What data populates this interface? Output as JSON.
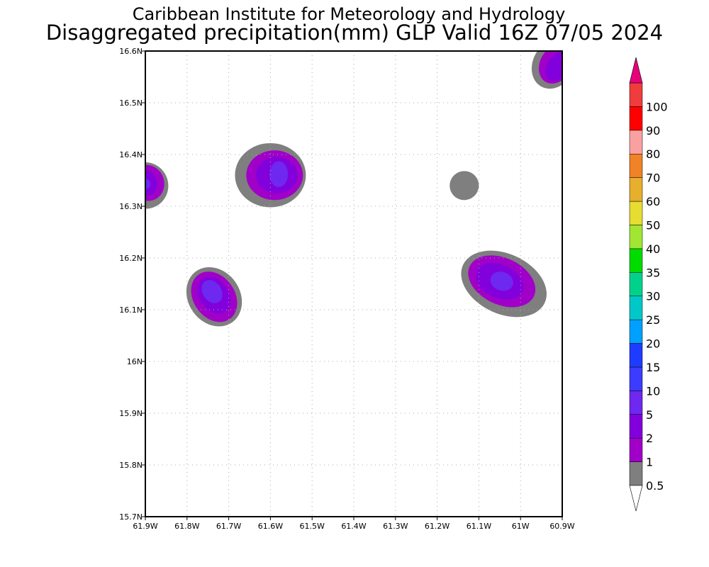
{
  "titles": {
    "line1": "Caribbean Institute for Meteorology and Hydrology",
    "line2": "Disaggregated precipitation(mm) GLP Valid 16Z 07/05 2024"
  },
  "chart_data": {
    "type": "heatmap",
    "x_range": [
      -61.9,
      -60.9
    ],
    "y_range": [
      15.7,
      16.6
    ],
    "x_ticks": [
      {
        "value": -61.9,
        "label": "61.9W"
      },
      {
        "value": -61.8,
        "label": "61.8W"
      },
      {
        "value": -61.7,
        "label": "61.7W"
      },
      {
        "value": -61.6,
        "label": "61.6W"
      },
      {
        "value": -61.5,
        "label": "61.5W"
      },
      {
        "value": -61.4,
        "label": "61.4W"
      },
      {
        "value": -61.3,
        "label": "61.3W"
      },
      {
        "value": -61.2,
        "label": "61.2W"
      },
      {
        "value": -61.1,
        "label": "61.1W"
      },
      {
        "value": -61.0,
        "label": "61W"
      },
      {
        "value": -60.9,
        "label": "60.9W"
      }
    ],
    "y_ticks": [
      {
        "value": 15.7,
        "label": "15.7N"
      },
      {
        "value": 15.8,
        "label": "15.8N"
      },
      {
        "value": 15.9,
        "label": "15.9N"
      },
      {
        "value": 16.0,
        "label": "16N"
      },
      {
        "value": 16.1,
        "label": "16.1N"
      },
      {
        "value": 16.2,
        "label": "16.2N"
      },
      {
        "value": 16.3,
        "label": "16.3N"
      },
      {
        "value": 16.4,
        "label": "16.4N"
      },
      {
        "value": 16.5,
        "label": "16.5N"
      },
      {
        "value": 16.6,
        "label": "16.6N"
      }
    ],
    "grid": true,
    "legend_placement": "right",
    "colorbar": [
      {
        "label": "0.5",
        "color": "#7f7f7f"
      },
      {
        "label": "1",
        "color": "#a000c8"
      },
      {
        "label": "2",
        "color": "#8200dc"
      },
      {
        "label": "5",
        "color": "#6e28f0"
      },
      {
        "label": "10",
        "color": "#3c3cff"
      },
      {
        "label": "15",
        "color": "#1e3cff"
      },
      {
        "label": "20",
        "color": "#00a0ff"
      },
      {
        "label": "25",
        "color": "#00c8c8"
      },
      {
        "label": "30",
        "color": "#00d28c"
      },
      {
        "label": "35",
        "color": "#00dc00"
      },
      {
        "label": "40",
        "color": "#a0e632"
      },
      {
        "label": "50",
        "color": "#e6dc32"
      },
      {
        "label": "60",
        "color": "#e6af2d"
      },
      {
        "label": "70",
        "color": "#f08228"
      },
      {
        "label": "80",
        "color": "#faa0a0"
      },
      {
        "label": "90",
        "color": "#ff0000"
      },
      {
        "label": "100",
        "color": "#f03c3c"
      }
    ],
    "colorbar_top_color": "#e6007a",
    "colorbar_bottom_color": "#ffffff",
    "precip_cells": [
      {
        "lon": -61.9,
        "lat": 16.34,
        "rx": 0.055,
        "ry": 0.045,
        "level": 0.5,
        "tilt": -20
      },
      {
        "lon": -61.895,
        "lat": 16.345,
        "rx": 0.04,
        "ry": 0.035,
        "level": 1,
        "tilt": -20
      },
      {
        "lon": -61.9,
        "lat": 16.345,
        "rx": 0.028,
        "ry": 0.025,
        "level": 2,
        "tilt": -20
      },
      {
        "lon": -61.9,
        "lat": 16.343,
        "rx": 0.012,
        "ry": 0.01,
        "level": 5,
        "tilt": 0
      },
      {
        "lon": -61.6,
        "lat": 16.36,
        "rx": 0.085,
        "ry": 0.062,
        "level": 0.5,
        "tilt": 0
      },
      {
        "lon": -61.59,
        "lat": 16.36,
        "rx": 0.068,
        "ry": 0.048,
        "level": 1,
        "tilt": 0
      },
      {
        "lon": -61.585,
        "lat": 16.36,
        "rx": 0.05,
        "ry": 0.035,
        "level": 2,
        "tilt": 0
      },
      {
        "lon": -61.58,
        "lat": 16.362,
        "rx": 0.022,
        "ry": 0.025,
        "level": 5,
        "tilt": 0
      },
      {
        "lon": -61.735,
        "lat": 16.125,
        "rx": 0.075,
        "ry": 0.05,
        "level": 0.5,
        "tilt": 55
      },
      {
        "lon": -61.735,
        "lat": 16.125,
        "rx": 0.065,
        "ry": 0.04,
        "level": 1,
        "tilt": 55
      },
      {
        "lon": -61.735,
        "lat": 16.128,
        "rx": 0.048,
        "ry": 0.028,
        "level": 2,
        "tilt": 55
      },
      {
        "lon": -61.74,
        "lat": 16.135,
        "rx": 0.03,
        "ry": 0.018,
        "level": 5,
        "tilt": 55
      },
      {
        "lon": -61.135,
        "lat": 16.34,
        "rx": 0.035,
        "ry": 0.028,
        "level": 0.5,
        "tilt": -30
      },
      {
        "lon": -61.04,
        "lat": 16.15,
        "rx": 0.108,
        "ry": 0.058,
        "level": 0.5,
        "tilt": 25
      },
      {
        "lon": -61.045,
        "lat": 16.155,
        "rx": 0.085,
        "ry": 0.045,
        "level": 1,
        "tilt": 25
      },
      {
        "lon": -61.05,
        "lat": 16.155,
        "rx": 0.06,
        "ry": 0.032,
        "level": 2,
        "tilt": 25
      },
      {
        "lon": -61.045,
        "lat": 16.155,
        "rx": 0.028,
        "ry": 0.018,
        "level": 5,
        "tilt": 20
      },
      {
        "lon": -60.92,
        "lat": 16.575,
        "rx": 0.05,
        "ry": 0.05,
        "level": 0.5,
        "tilt": 30
      },
      {
        "lon": -60.915,
        "lat": 16.575,
        "rx": 0.038,
        "ry": 0.04,
        "level": 1,
        "tilt": 30
      },
      {
        "lon": -60.912,
        "lat": 16.57,
        "rx": 0.025,
        "ry": 0.03,
        "level": 2,
        "tilt": 30
      }
    ]
  }
}
